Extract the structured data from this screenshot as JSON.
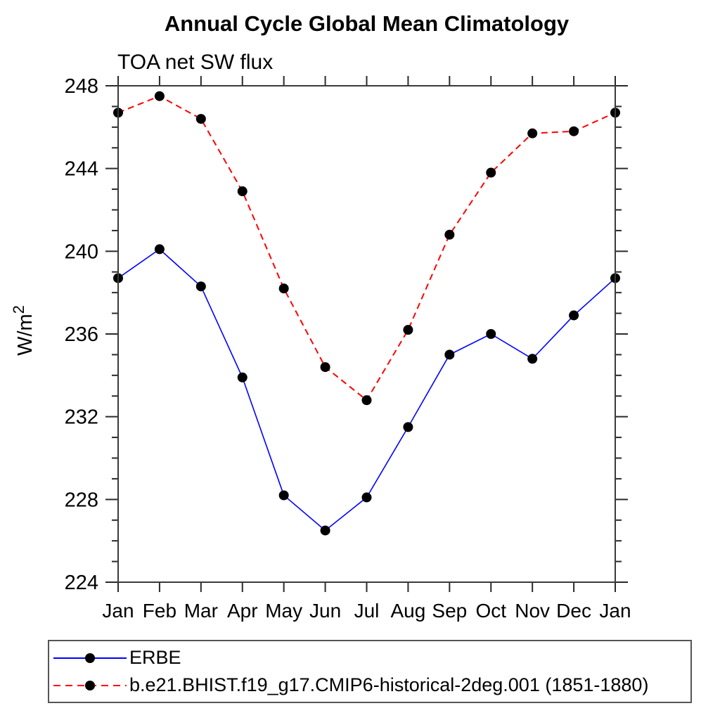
{
  "title": "Annual Cycle Global Mean Climatology",
  "subtitle": "TOA net SW flux",
  "legend": {
    "items": [
      {
        "label": "ERBE",
        "color": "#0000ff",
        "line": "solid",
        "marker_color": "#000000"
      },
      {
        "label": "b.e21.BHIST.f19_g17.CMIP6-historical-2deg.001 (1851-1880)",
        "color": "#ff0000",
        "line": "dashed",
        "marker_color": "#000000"
      }
    ]
  },
  "chart_data": {
    "type": "line",
    "title": "Annual Cycle Global Mean Climatology",
    "subtitle": "TOA net SW flux",
    "ylabel": "W/m²",
    "ylabel_parts": {
      "base": "W/m",
      "sup": "2"
    },
    "ylim": [
      224,
      248
    ],
    "ytick_major": [
      224,
      228,
      232,
      236,
      240,
      244,
      248
    ],
    "ytick_minor_step": 1,
    "grid": false,
    "legend_position": "bottom",
    "x_categories": [
      "Jan",
      "Feb",
      "Mar",
      "Apr",
      "May",
      "Jun",
      "Jul",
      "Aug",
      "Sep",
      "Oct",
      "Nov",
      "Dec",
      "Jan"
    ],
    "series": [
      {
        "name": "ERBE",
        "color": "#0000ff",
        "line": "solid",
        "marker": "filled-circle",
        "marker_color": "#000000",
        "values": [
          238.7,
          240.1,
          238.3,
          233.9,
          228.2,
          226.5,
          228.1,
          231.5,
          235.0,
          236.0,
          234.8,
          236.9,
          238.7
        ]
      },
      {
        "name": "b.e21.BHIST.f19_g17.CMIP6-historical-2deg.001 (1851-1880)",
        "color": "#ff0000",
        "line": "dashed",
        "marker": "filled-circle",
        "marker_color": "#000000",
        "values": [
          246.7,
          247.5,
          246.4,
          242.9,
          238.2,
          234.4,
          232.8,
          236.2,
          240.8,
          243.8,
          245.7,
          245.8,
          246.7
        ]
      }
    ]
  }
}
